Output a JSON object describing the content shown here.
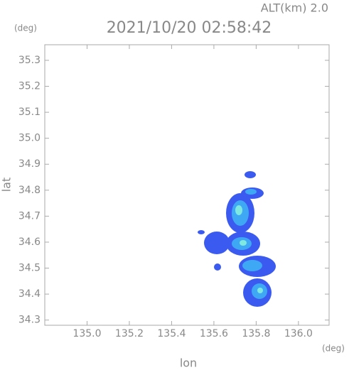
{
  "chart_data": {
    "type": "radar-map",
    "title": "2021/10/20 02:58:42",
    "subtitle": "ALT(km) 2.0",
    "x_label": "lon",
    "y_label": "lat",
    "x_unit": "(deg)",
    "y_unit": "(deg)",
    "xlim": [
      134.8,
      136.145
    ],
    "ylim": [
      34.28,
      35.36
    ],
    "xticks": [
      {
        "value": 135,
        "label": "135.0"
      },
      135.2,
      135.4,
      135.6,
      135.8,
      {
        "value": 136,
        "label": "136.0"
      }
    ],
    "yticks": [
      34.3,
      34.4,
      34.5,
      34.6,
      34.7,
      34.8,
      34.9,
      {
        "value": 35,
        "label": "35.0"
      },
      35.1,
      35.2,
      35.3
    ]
  }
}
